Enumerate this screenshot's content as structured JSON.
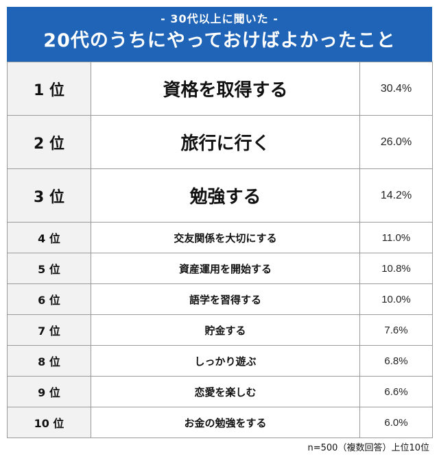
{
  "header": {
    "subtitle": "- 30代以上に聞いた -",
    "title": "20代のうちにやっておけばよかったこと",
    "background": "#1f64b6"
  },
  "ranking": [
    {
      "rank": "1 位",
      "item": "資格を取得する",
      "percent": "30.4%"
    },
    {
      "rank": "2 位",
      "item": "旅行に行く",
      "percent": "26.0%"
    },
    {
      "rank": "3 位",
      "item": "勉強する",
      "percent": "14.2%"
    },
    {
      "rank": "4 位",
      "item": "交友関係を大切にする",
      "percent": "11.0%"
    },
    {
      "rank": "5 位",
      "item": "資産運用を開始する",
      "percent": "10.8%"
    },
    {
      "rank": "6 位",
      "item": "語学を習得する",
      "percent": "10.0%"
    },
    {
      "rank": "7 位",
      "item": "貯金する",
      "percent": "7.6%"
    },
    {
      "rank": "8 位",
      "item": "しっかり遊ぶ",
      "percent": "6.8%"
    },
    {
      "rank": "9 位",
      "item": "恋愛を楽しむ",
      "percent": "6.6%"
    },
    {
      "rank": "10 位",
      "item": "お金の勉強をする",
      "percent": "6.0%"
    }
  ],
  "footnote": "n=500（複数回答）上位10位"
}
